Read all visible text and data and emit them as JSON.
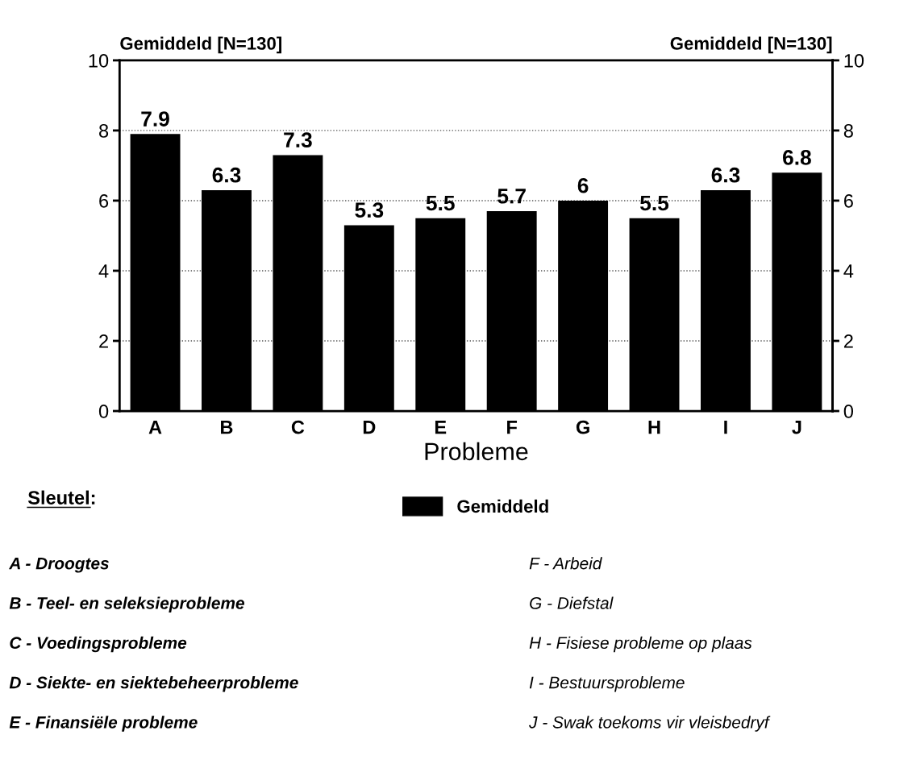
{
  "chart_data": {
    "type": "bar",
    "categories": [
      "A",
      "B",
      "C",
      "D",
      "E",
      "F",
      "G",
      "H",
      "I",
      "J"
    ],
    "series": [
      {
        "name": "Gemiddeld",
        "color": "#000000",
        "values": [
          7.9,
          6.3,
          7.3,
          5.3,
          5.5,
          5.7,
          6,
          5.5,
          6.3,
          6.8
        ]
      }
    ],
    "xlabel": "Probleme",
    "ylabel": "Gemiddeld [N=130]",
    "y2label": "Gemiddeld [N=130]",
    "ylim": [
      0,
      10
    ],
    "yticks": [
      0,
      2,
      4,
      6,
      8,
      10
    ],
    "y2lim": [
      0,
      10
    ],
    "y2ticks": [
      0,
      2,
      4,
      6,
      8,
      10
    ],
    "grid": "y",
    "legend": "bottom",
    "data_labels": true,
    "annotations": [
      "Sleutel:",
      "A - Droogtes",
      "B - Teel- en seleksieprobleme",
      "C - Voedingsprobleme",
      "D - Siekte- en siektebeheerprobleme",
      "E - Finansiële probleme",
      "F - Arbeid",
      "G - Diefstal",
      "H - Fisiese probleme op plaas",
      "I - Bestuursprobleme",
      "J - Swak toekoms vir vleisbedryf"
    ]
  }
}
